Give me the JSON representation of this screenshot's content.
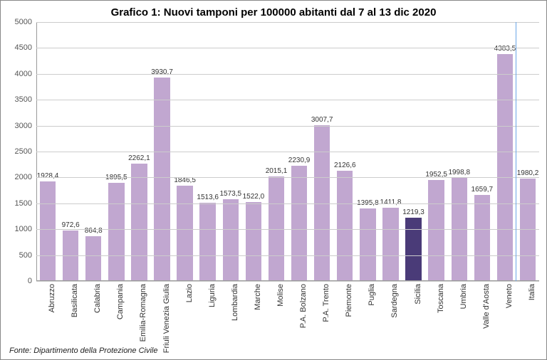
{
  "chart": {
    "type": "bar",
    "title": "Grafico 1: Nuovi tamponi per 100000 abitanti dal 7 al 13 dic 2020",
    "source": "Fonte: Dipartimento della Protezione Civile",
    "title_fontsize": 15,
    "label_fontsize": 11,
    "value_fontsize": 10,
    "background_color": "#ffffff",
    "grid_color": "#cccccc",
    "border_color": "#888888",
    "separator_color": "#6aa6e8",
    "separator_after_index": 20,
    "y_axis": {
      "min": 0,
      "max": 5000,
      "step": 500,
      "ticks": [
        0,
        500,
        1000,
        1500,
        2000,
        2500,
        3000,
        3500,
        4000,
        4500,
        5000
      ]
    },
    "bar_width_ratio": 0.7,
    "bars": [
      {
        "label": "Abruzzo",
        "value": 1928.4,
        "value_text": "1928,4",
        "color": "#c1a7d0",
        "highlighted": false
      },
      {
        "label": "Basilicata",
        "value": 972.6,
        "value_text": "972,6",
        "color": "#c1a7d0",
        "highlighted": false
      },
      {
        "label": "Calabria",
        "value": 864.8,
        "value_text": "864,8",
        "color": "#c1a7d0",
        "highlighted": false
      },
      {
        "label": "Campania",
        "value": 1895.5,
        "value_text": "1895,5",
        "color": "#c1a7d0",
        "highlighted": false
      },
      {
        "label": "Emilia-Romagna",
        "value": 2262.1,
        "value_text": "2262,1",
        "color": "#c1a7d0",
        "highlighted": false
      },
      {
        "label": "Friuli Venezia Giulia",
        "value": 3930.7,
        "value_text": "3930,7",
        "color": "#c1a7d0",
        "highlighted": false
      },
      {
        "label": "Lazio",
        "value": 1846.5,
        "value_text": "1846,5",
        "color": "#c1a7d0",
        "highlighted": false
      },
      {
        "label": "Liguria",
        "value": 1513.6,
        "value_text": "1513,6",
        "color": "#c1a7d0",
        "highlighted": false
      },
      {
        "label": "Lombardia",
        "value": 1573.5,
        "value_text": "1573,5",
        "color": "#c1a7d0",
        "highlighted": false
      },
      {
        "label": "Marche",
        "value": 1522.0,
        "value_text": "1522,0",
        "color": "#c1a7d0",
        "highlighted": false
      },
      {
        "label": "Molise",
        "value": 2015.1,
        "value_text": "2015,1",
        "color": "#c1a7d0",
        "highlighted": false
      },
      {
        "label": "P.A. Bolzano",
        "value": 2230.9,
        "value_text": "2230,9",
        "color": "#c1a7d0",
        "highlighted": false
      },
      {
        "label": "P.A. Trento",
        "value": 3007.7,
        "value_text": "3007,7",
        "color": "#c1a7d0",
        "highlighted": false
      },
      {
        "label": "Piemonte",
        "value": 2126.6,
        "value_text": "2126,6",
        "color": "#c1a7d0",
        "highlighted": false
      },
      {
        "label": "Puglia",
        "value": 1395.8,
        "value_text": "1395,8",
        "color": "#c1a7d0",
        "highlighted": false
      },
      {
        "label": "Sardegna",
        "value": 1411.8,
        "value_text": "1411,8",
        "color": "#c1a7d0",
        "highlighted": false
      },
      {
        "label": "Sicilia",
        "value": 1219.3,
        "value_text": "1219,3",
        "color": "#4a3b78",
        "highlighted": true
      },
      {
        "label": "Toscana",
        "value": 1952.5,
        "value_text": "1952,5",
        "color": "#c1a7d0",
        "highlighted": false
      },
      {
        "label": "Umbria",
        "value": 1998.8,
        "value_text": "1998,8",
        "color": "#c1a7d0",
        "highlighted": false
      },
      {
        "label": "Valle d'Aosta",
        "value": 1659.7,
        "value_text": "1659,7",
        "color": "#c1a7d0",
        "highlighted": false
      },
      {
        "label": "Veneto",
        "value": 4383.5,
        "value_text": "4383,5",
        "color": "#c1a7d0",
        "highlighted": false
      },
      {
        "label": "Italia",
        "value": 1980.2,
        "value_text": "1980,2",
        "color": "#c1a7d0",
        "highlighted": false
      }
    ]
  }
}
